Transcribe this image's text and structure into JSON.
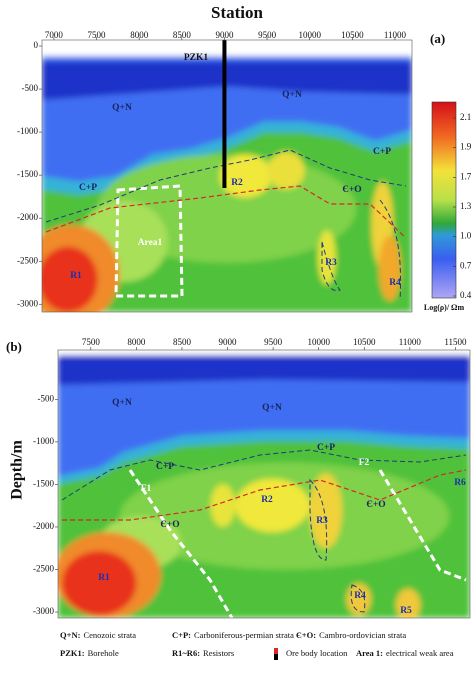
{
  "chart_data": [
    {
      "type": "section",
      "title": "Station",
      "panel_label": "(a)",
      "xlim": [
        6860,
        11200
      ],
      "ylim": [
        -3090,
        70
      ],
      "xticks": [
        7000,
        7500,
        8000,
        8500,
        9000,
        9500,
        10000,
        10500,
        11000
      ],
      "yticks": [
        0,
        -500,
        -1000,
        -1500,
        -2000,
        -2500,
        -3000
      ],
      "annotations": [
        "PZK1",
        "Q+N",
        "Q+N",
        "C+P",
        "C+P",
        "Є+O",
        "R2",
        "Area1",
        "R1",
        "R3",
        "R4"
      ],
      "colorbar": {
        "label": "Log(ρ)/ Ωm",
        "ticks": [
          2.1,
          1.9,
          1.7,
          1.3,
          {
            "value": 1,
            "label": "1.0"
          },
          0.7,
          0.4
        ]
      }
    },
    {
      "type": "section",
      "panel_label": "(b)",
      "ylabel": "Depth/m",
      "xlim": [
        7140,
        11660
      ],
      "ylim": [
        -3070,
        80
      ],
      "xticks": [
        7500,
        8000,
        8500,
        9000,
        9500,
        10000,
        10500,
        11000,
        11500
      ],
      "yticks": [
        -500,
        -1000,
        -1500,
        -2000,
        -2500,
        -3000
      ],
      "annotations": [
        "Q+N",
        "Q+N",
        "C+P",
        "C+P",
        "F1",
        "F2",
        "Є+O",
        "Є+O",
        "R2",
        "R3",
        "R6",
        "R1",
        "R4",
        "R5"
      ]
    }
  ],
  "legend": [
    {
      "key": "Q+N:",
      "text": "Cenozoic strata"
    },
    {
      "key": "C+P:",
      "text": "Carboniferous-permian strata"
    },
    {
      "key": "Є+O:",
      "text": "Cambro-ordovician strata"
    },
    {
      "key": "PZK1:",
      "text": "Borehole"
    },
    {
      "key": "R1~R6:",
      "text": "Resistors"
    },
    {
      "key": "",
      "text": "Ore body location"
    },
    {
      "key": "Area 1:",
      "text": "electrical weak area"
    }
  ]
}
